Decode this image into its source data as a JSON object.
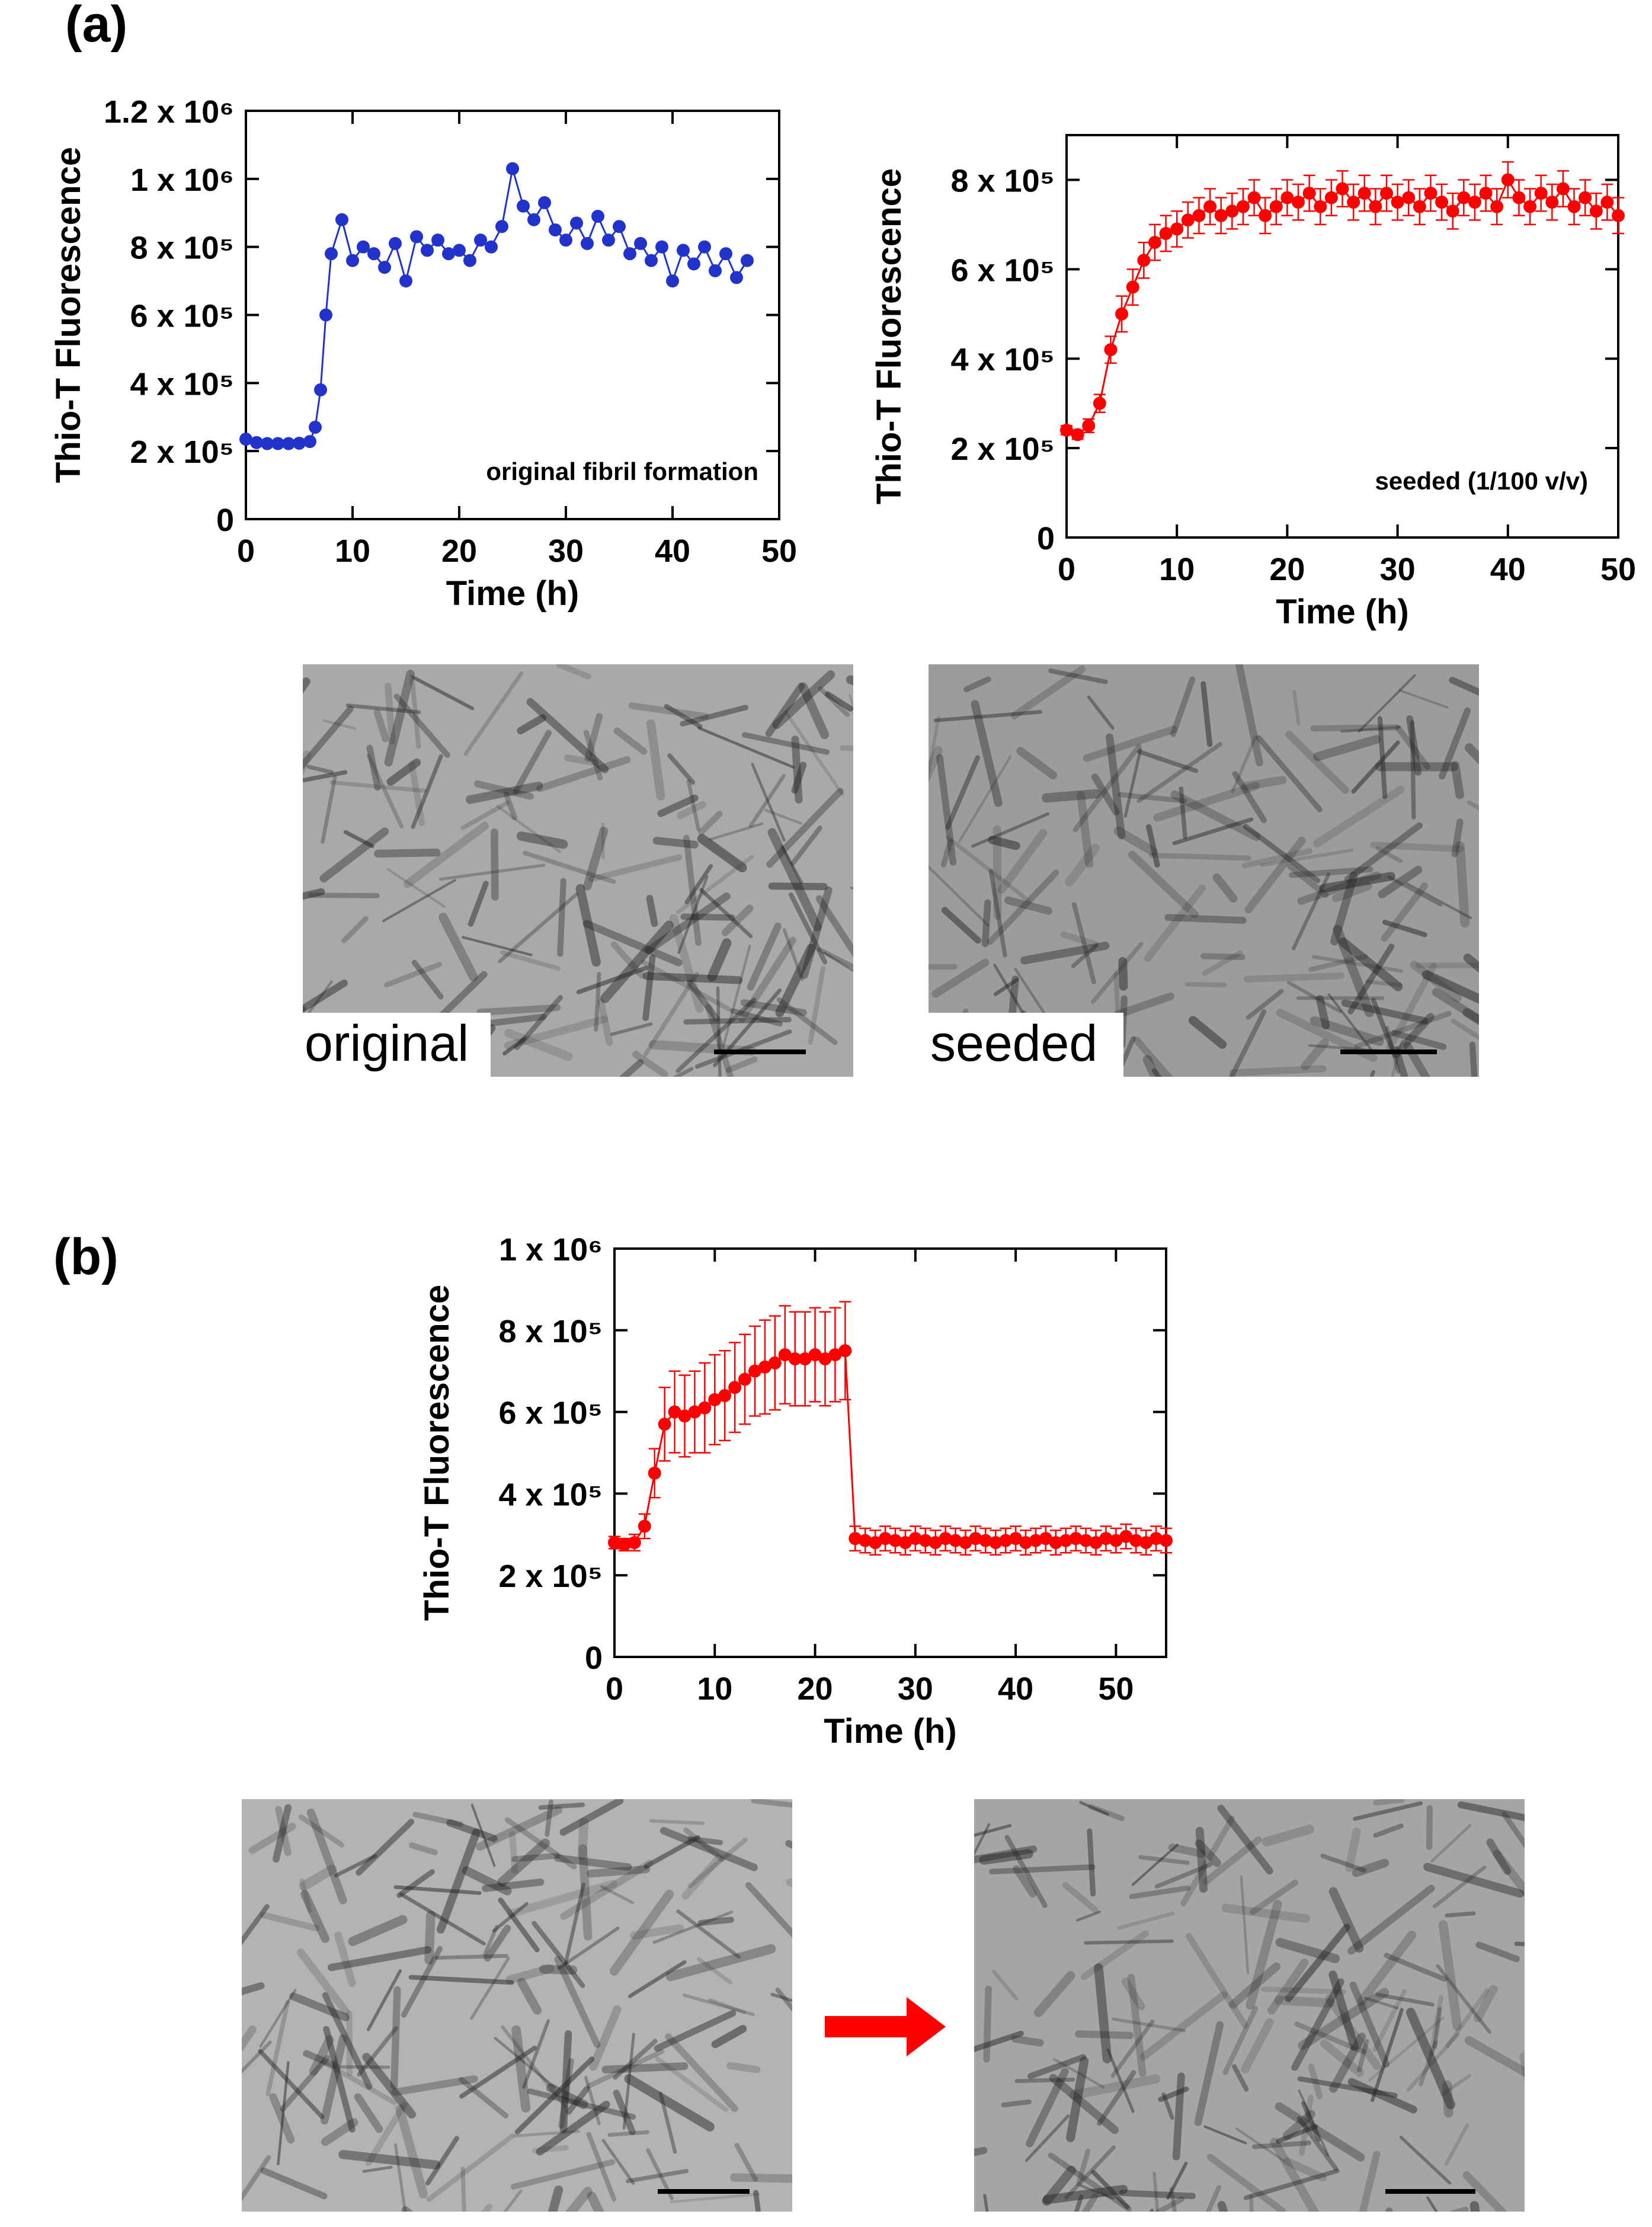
{
  "panels": [
    "(a)",
    "(b)"
  ],
  "micrograph_labels": [
    "original",
    "seeded"
  ],
  "chart_data": [
    {
      "type": "line",
      "ylabel": "Thio-T Fluorescence",
      "xlabel": "Time (h)",
      "annotation": "original fibril formation",
      "color": "#2233cc",
      "xlim": [
        0,
        50
      ],
      "xticks": [
        0,
        10,
        20,
        30,
        40,
        50
      ],
      "ylim": [
        0,
        1200000
      ],
      "yticks": [
        0,
        {
          "value": 200000,
          "label": "2 x 10⁵"
        },
        {
          "value": 400000,
          "label": "4 x 10⁵"
        },
        {
          "value": 600000,
          "label": "6 x 10⁵"
        },
        {
          "value": 800000,
          "label": "8 x 10⁵"
        },
        {
          "value": 1000000,
          "label": "1 x 10⁶"
        },
        {
          "value": 1200000,
          "label": "1.2 x 10⁶"
        }
      ],
      "x": [
        0,
        1,
        2,
        3,
        4,
        5,
        6,
        6.5,
        7,
        7.5,
        8,
        9,
        10,
        11,
        12,
        13,
        14,
        15,
        16,
        17,
        18,
        19,
        20,
        21,
        22,
        23,
        24,
        25,
        26,
        27,
        28,
        29,
        30,
        31,
        32,
        33,
        34,
        35,
        36,
        37,
        38,
        39,
        40,
        41,
        42,
        43,
        44,
        45,
        46,
        47
      ],
      "values": [
        235000,
        225000,
        222000,
        222000,
        222000,
        223000,
        228000,
        270000,
        380000,
        600000,
        780000,
        880000,
        760000,
        800000,
        780000,
        740000,
        810000,
        700000,
        830000,
        790000,
        820000,
        780000,
        790000,
        760000,
        820000,
        800000,
        860000,
        1030000,
        920000,
        880000,
        930000,
        850000,
        820000,
        870000,
        810000,
        890000,
        820000,
        860000,
        780000,
        810000,
        760000,
        800000,
        700000,
        790000,
        750000,
        800000,
        730000,
        780000,
        710000,
        760000
      ]
    },
    {
      "type": "line",
      "ylabel": "Thio-T Fluorescence",
      "xlabel": "Time (h)",
      "annotation": "seeded (1/100 v/v)",
      "color": "#ff0000",
      "xlim": [
        0,
        50
      ],
      "xticks": [
        0,
        10,
        20,
        30,
        40,
        50
      ],
      "ylim": [
        0,
        900000
      ],
      "yticks": [
        0,
        {
          "value": 200000,
          "label": "2 x 10⁵"
        },
        {
          "value": 400000,
          "label": "4 x 10⁵"
        },
        {
          "value": 600000,
          "label": "6 x 10⁵"
        },
        {
          "value": 800000,
          "label": "8 x 10⁵"
        }
      ],
      "x": [
        0,
        1,
        2,
        3,
        4,
        5,
        6,
        7,
        8,
        9,
        10,
        11,
        12,
        13,
        14,
        15,
        16,
        17,
        18,
        19,
        20,
        21,
        22,
        23,
        24,
        25,
        26,
        27,
        28,
        29,
        30,
        31,
        32,
        33,
        34,
        35,
        36,
        37,
        38,
        39,
        40,
        41,
        42,
        43,
        44,
        45,
        46,
        47,
        48,
        49,
        50
      ],
      "values": [
        240000,
        230000,
        250000,
        300000,
        420000,
        500000,
        560000,
        620000,
        660000,
        680000,
        690000,
        710000,
        720000,
        740000,
        720000,
        730000,
        740000,
        760000,
        720000,
        740000,
        760000,
        750000,
        770000,
        740000,
        760000,
        780000,
        750000,
        770000,
        740000,
        770000,
        750000,
        760000,
        740000,
        770000,
        750000,
        730000,
        760000,
        750000,
        770000,
        740000,
        800000,
        760000,
        740000,
        770000,
        750000,
        780000,
        740000,
        760000,
        730000,
        750000,
        720000
      ],
      "errors": [
        10000,
        10000,
        15000,
        20000,
        30000,
        40000,
        40000,
        40000,
        40000,
        40000,
        40000,
        40000,
        40000,
        40000,
        40000,
        40000,
        40000,
        40000,
        40000,
        40000,
        40000,
        40000,
        40000,
        40000,
        40000,
        40000,
        40000,
        40000,
        40000,
        40000,
        40000,
        40000,
        40000,
        40000,
        40000,
        40000,
        40000,
        40000,
        40000,
        40000,
        40000,
        40000,
        40000,
        40000,
        40000,
        40000,
        40000,
        40000,
        40000,
        40000,
        40000
      ]
    },
    {
      "type": "line",
      "ylabel": "Thio-T Fluorescence",
      "xlabel": "Time (h)",
      "color": "#ff0000",
      "xlim": [
        0,
        55
      ],
      "xticks": [
        0,
        10,
        20,
        30,
        40,
        50
      ],
      "ylim": [
        0,
        1000000
      ],
      "yticks": [
        0,
        {
          "value": 200000,
          "label": "2 x 10⁵"
        },
        {
          "value": 400000,
          "label": "4 x 10⁵"
        },
        {
          "value": 600000,
          "label": "6 x 10⁵"
        },
        {
          "value": 800000,
          "label": "8 x 10⁵"
        },
        {
          "value": 1000000,
          "label": "1 x 10⁶"
        }
      ],
      "x": [
        0,
        1,
        2,
        3,
        4,
        5,
        6,
        7,
        8,
        9,
        10,
        11,
        12,
        13,
        14,
        15,
        16,
        17,
        18,
        19,
        20,
        21,
        22,
        23,
        24,
        25,
        26,
        27,
        28,
        29,
        30,
        31,
        32,
        33,
        34,
        35,
        36,
        37,
        38,
        39,
        40,
        41,
        42,
        43,
        44,
        45,
        46,
        47,
        48,
        49,
        50,
        51,
        52,
        53,
        54,
        55
      ],
      "values": [
        280000,
        275000,
        280000,
        320000,
        450000,
        570000,
        600000,
        590000,
        600000,
        610000,
        630000,
        640000,
        660000,
        680000,
        700000,
        710000,
        720000,
        740000,
        730000,
        730000,
        740000,
        730000,
        740000,
        750000,
        290000,
        285000,
        280000,
        290000,
        285000,
        280000,
        290000,
        285000,
        280000,
        290000,
        285000,
        280000,
        290000,
        285000,
        280000,
        285000,
        290000,
        280000,
        285000,
        290000,
        280000,
        285000,
        290000,
        285000,
        280000,
        290000,
        285000,
        295000,
        285000,
        280000,
        290000,
        285000
      ],
      "errors": [
        15000,
        15000,
        20000,
        30000,
        60000,
        90000,
        100000,
        100000,
        100000,
        110000,
        110000,
        110000,
        110000,
        110000,
        110000,
        115000,
        115000,
        120000,
        115000,
        115000,
        115000,
        115000,
        115000,
        120000,
        30000,
        30000,
        30000,
        30000,
        30000,
        30000,
        30000,
        30000,
        30000,
        30000,
        30000,
        30000,
        30000,
        30000,
        30000,
        30000,
        30000,
        30000,
        30000,
        30000,
        30000,
        30000,
        30000,
        30000,
        30000,
        30000,
        30000,
        30000,
        30000,
        30000,
        30000,
        30000
      ]
    }
  ]
}
